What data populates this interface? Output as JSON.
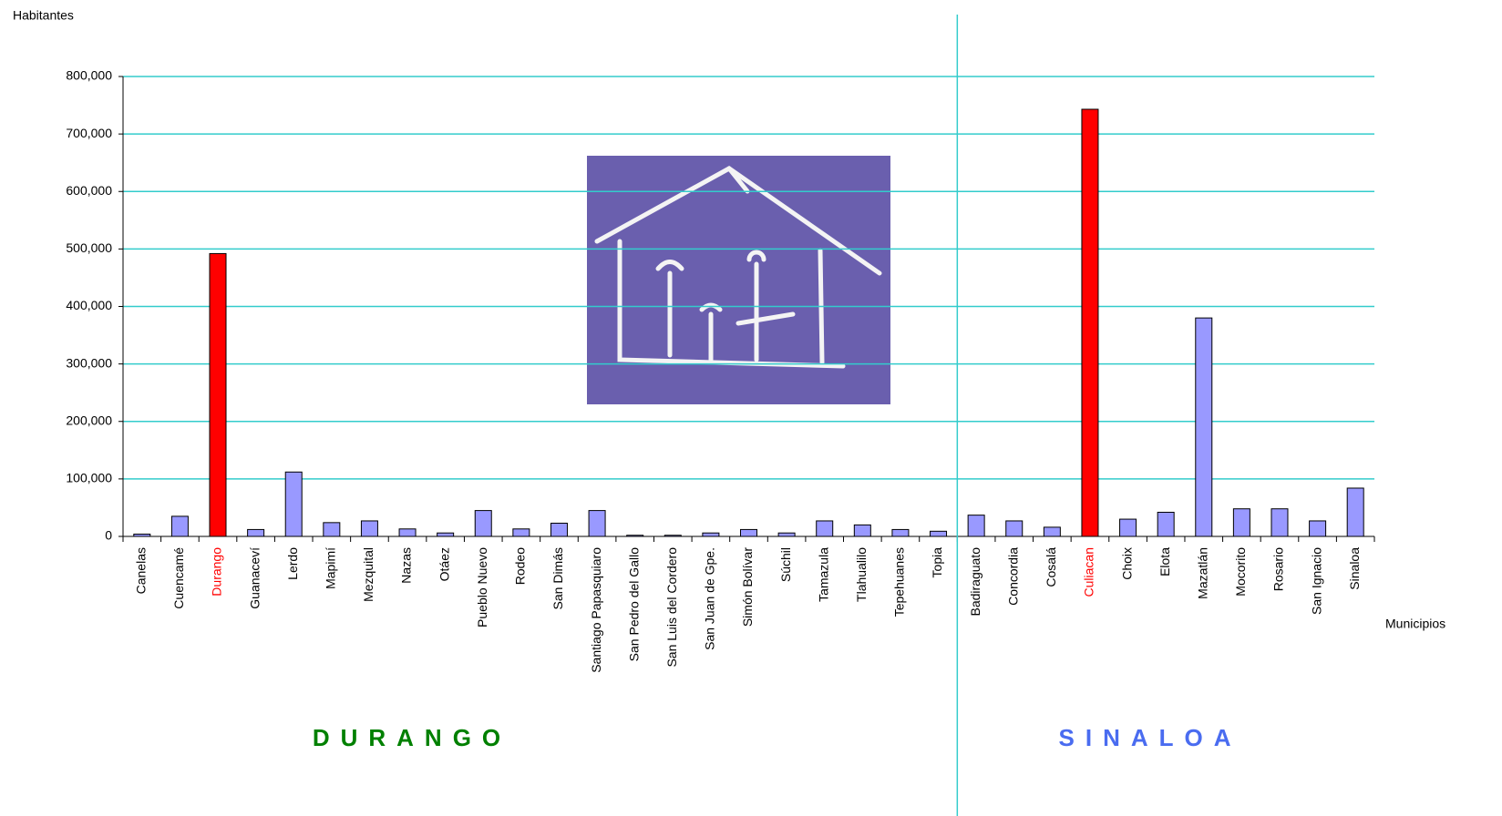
{
  "chart_data": {
    "type": "bar",
    "y_label": "Habitantes",
    "x_label": "Municipios",
    "categories": [
      "Canelas",
      "Cuencamé",
      "Durango",
      "Guanaceví",
      "Lerdo",
      "Mapimí",
      "Mezquital",
      "Nazas",
      "Otáez",
      "Pueblo Nuevo",
      "Rodeo",
      "San Dimás",
      "Santiago Papasquiaro",
      "San Pedro del Gallo",
      "San Luis del Cordero",
      "San Juan de Gpe.",
      "Simón Bolívar",
      "Súchil",
      "Tamazula",
      "Tlahualilo",
      "Tepehuanes",
      "Topia",
      "Badiraguato",
      "Concordia",
      "Cosalá",
      "Culiacan",
      "Choix",
      "Elota",
      "Mazatlán",
      "Mocorito",
      "Rosario",
      "San Ignacio",
      "Sinaloa"
    ],
    "values": [
      4000,
      35000,
      492000,
      12000,
      112000,
      24000,
      27000,
      13000,
      6000,
      45000,
      13000,
      23000,
      45000,
      2000,
      2000,
      6000,
      12000,
      6000,
      27000,
      20000,
      12000,
      9000,
      37000,
      27000,
      16000,
      743000,
      30000,
      42000,
      380000,
      48000,
      48000,
      27000,
      84000
    ],
    "color": "#9999ff",
    "colors": [
      "#9999ff",
      "#9999ff",
      "#ff0000",
      "#9999ff",
      "#9999ff",
      "#9999ff",
      "#9999ff",
      "#9999ff",
      "#9999ff",
      "#9999ff",
      "#9999ff",
      "#9999ff",
      "#9999ff",
      "#9999ff",
      "#9999ff",
      "#9999ff",
      "#9999ff",
      "#9999ff",
      "#9999ff",
      "#9999ff",
      "#9999ff",
      "#9999ff",
      "#9999ff",
      "#9999ff",
      "#9999ff",
      "#ff0000",
      "#9999ff",
      "#9999ff",
      "#9999ff",
      "#9999ff",
      "#9999ff",
      "#9999ff",
      "#9999ff"
    ],
    "ylim": [
      0,
      800000
    ],
    "yticks": [
      0,
      {
        "value": 100000,
        "label": "100,000"
      },
      {
        "value": 200000,
        "label": "200,000"
      },
      {
        "value": 300000,
        "label": "300,000"
      },
      {
        "value": 400000,
        "label": "400,000"
      },
      {
        "value": 500000,
        "label": "500,000"
      },
      {
        "value": 600000,
        "label": "600,000"
      },
      {
        "value": 700000,
        "label": "700,000"
      },
      {
        "value": 800000,
        "label": "800,000"
      }
    ],
    "grid": true,
    "annotations": [
      {
        "text": "DURANGO",
        "color": "#008000"
      },
      {
        "text": "SINALOA",
        "color": "#4a6cf0"
      }
    ]
  }
}
